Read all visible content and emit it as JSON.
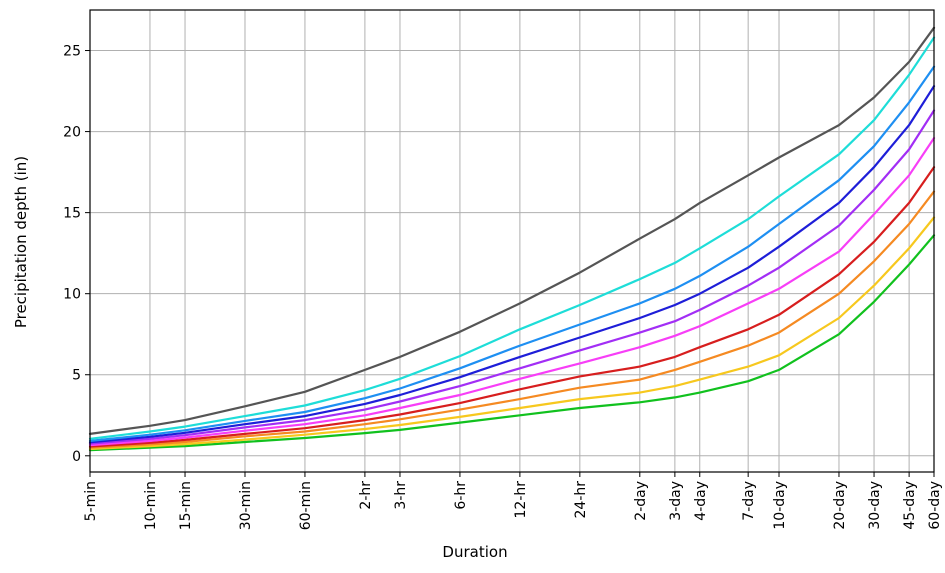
{
  "chart_data": {
    "type": "line",
    "xlabel": "Duration",
    "ylabel": "Precipitation depth (in)",
    "categories": [
      "5-min",
      "10-min",
      "15-min",
      "30-min",
      "60-min",
      "2-hr",
      "3-hr",
      "6-hr",
      "12-hr",
      "24-hr",
      "2-day",
      "3-day",
      "4-day",
      "7-day",
      "10-day",
      "20-day",
      "30-day",
      "45-day",
      "60-day"
    ],
    "ylim": [
      -1,
      27.5
    ],
    "yticks": [
      0,
      5,
      10,
      15,
      20,
      25
    ],
    "grid": true,
    "series": [
      {
        "color": "#11c11e",
        "values": [
          0.35,
          0.5,
          0.6,
          0.85,
          1.1,
          1.4,
          1.6,
          2.05,
          2.5,
          2.95,
          3.3,
          3.6,
          3.9,
          4.6,
          5.3,
          7.5,
          9.5,
          11.8,
          13.6
        ]
      },
      {
        "color": "#f7c81e",
        "values": [
          0.42,
          0.6,
          0.72,
          1.0,
          1.3,
          1.65,
          1.9,
          2.4,
          2.95,
          3.5,
          3.9,
          4.3,
          4.7,
          5.5,
          6.2,
          8.5,
          10.5,
          12.8,
          14.7
        ]
      },
      {
        "color": "#f58a22",
        "values": [
          0.5,
          0.7,
          0.85,
          1.2,
          1.5,
          1.95,
          2.25,
          2.85,
          3.5,
          4.2,
          4.7,
          5.3,
          5.8,
          6.8,
          7.6,
          10.0,
          12.0,
          14.3,
          16.3
        ]
      },
      {
        "color": "#d71e1e",
        "values": [
          0.57,
          0.8,
          0.98,
          1.35,
          1.7,
          2.2,
          2.55,
          3.25,
          4.1,
          4.9,
          5.5,
          6.1,
          6.7,
          7.8,
          8.7,
          11.2,
          13.2,
          15.6,
          17.8
        ]
      },
      {
        "color": "#f73ef7",
        "values": [
          0.66,
          0.92,
          1.12,
          1.55,
          1.95,
          2.5,
          2.95,
          3.75,
          4.75,
          5.7,
          6.7,
          7.4,
          8.0,
          9.4,
          10.3,
          12.6,
          14.9,
          17.3,
          19.6
        ]
      },
      {
        "color": "#a22ef5",
        "values": [
          0.75,
          1.05,
          1.27,
          1.75,
          2.2,
          2.85,
          3.35,
          4.3,
          5.4,
          6.5,
          7.6,
          8.3,
          9.0,
          10.5,
          11.6,
          14.2,
          16.4,
          18.9,
          21.3
        ]
      },
      {
        "color": "#1e1ed8",
        "values": [
          0.83,
          1.17,
          1.42,
          1.95,
          2.45,
          3.2,
          3.75,
          4.85,
          6.1,
          7.3,
          8.5,
          9.3,
          10.0,
          11.6,
          12.9,
          15.6,
          17.8,
          20.4,
          22.8
        ]
      },
      {
        "color": "#1e8ff2",
        "values": [
          0.92,
          1.3,
          1.57,
          2.15,
          2.7,
          3.55,
          4.15,
          5.4,
          6.8,
          8.1,
          9.4,
          10.3,
          11.1,
          12.9,
          14.3,
          17.0,
          19.1,
          21.8,
          24.0
        ]
      },
      {
        "color": "#1eddd8",
        "values": [
          1.05,
          1.5,
          1.8,
          2.45,
          3.1,
          4.05,
          4.75,
          6.15,
          7.8,
          9.3,
          10.9,
          11.9,
          12.8,
          14.6,
          16.0,
          18.6,
          20.7,
          23.5,
          25.8
        ]
      },
      {
        "color": "#555555",
        "values": [
          1.35,
          1.85,
          2.2,
          3.05,
          3.95,
          5.3,
          6.1,
          7.65,
          9.4,
          11.3,
          13.4,
          14.6,
          15.6,
          17.3,
          18.4,
          20.4,
          22.1,
          24.3,
          26.4
        ]
      }
    ]
  }
}
